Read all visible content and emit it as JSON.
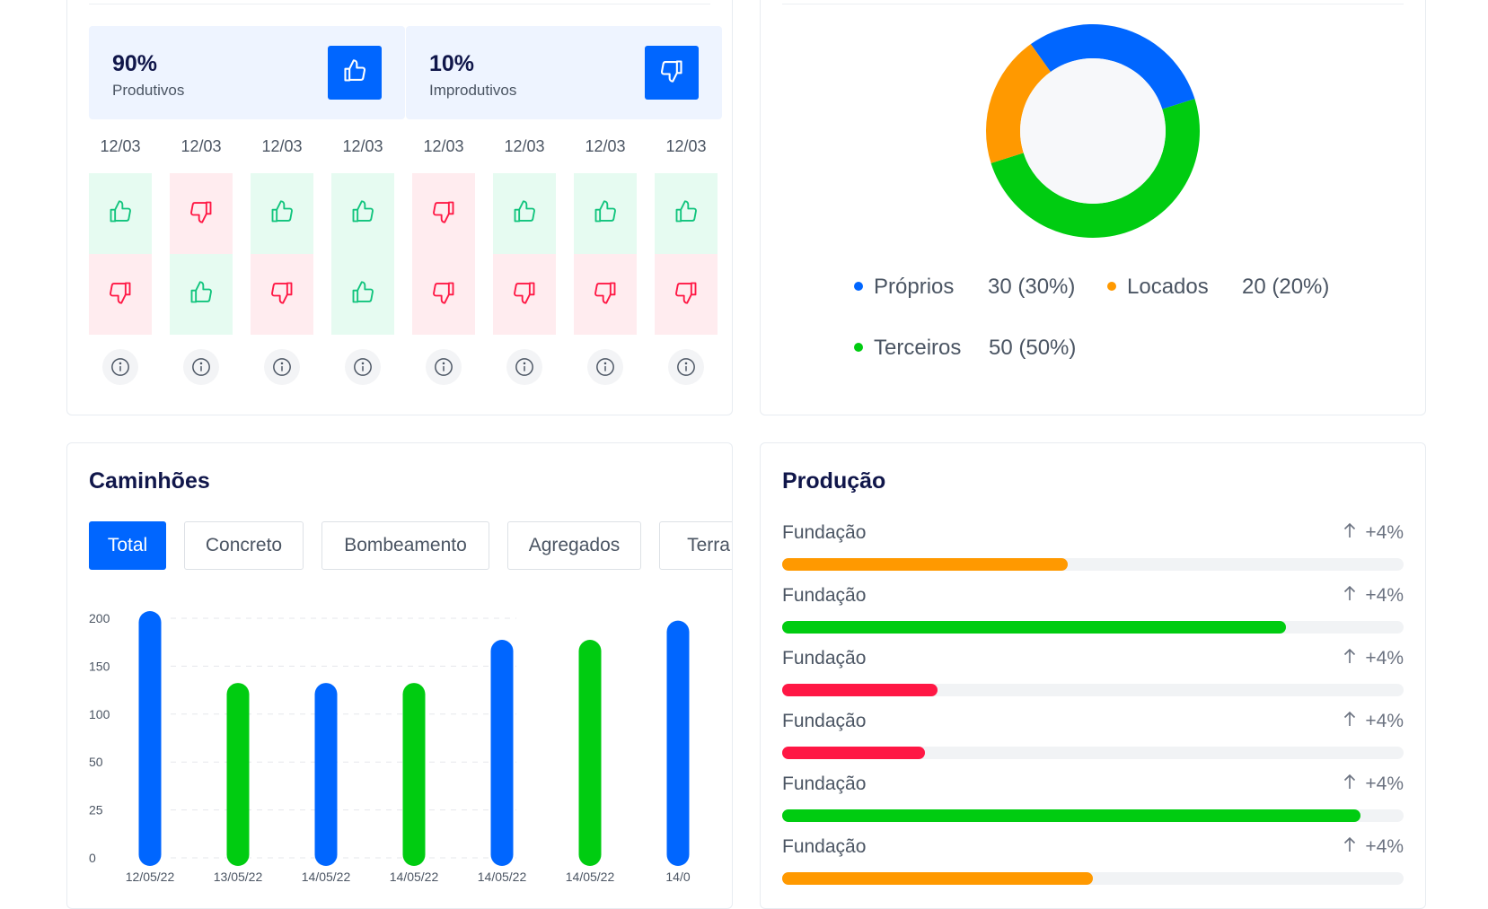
{
  "productivity": {
    "productive": {
      "percent": "90%",
      "label": "Produtivos",
      "icon": "thumbs-up-icon"
    },
    "unproductive": {
      "percent": "10%",
      "label": "Improdutivos",
      "icon": "thumbs-down-icon"
    },
    "days": [
      {
        "date": "12/03",
        "top": "up",
        "bottom": "down"
      },
      {
        "date": "12/03",
        "top": "down",
        "bottom": "up"
      },
      {
        "date": "12/03",
        "top": "up",
        "bottom": "down"
      },
      {
        "date": "12/03",
        "top": "up",
        "bottom": "up"
      },
      {
        "date": "12/03",
        "top": "down",
        "bottom": "down"
      },
      {
        "date": "12/03",
        "top": "up",
        "bottom": "down"
      },
      {
        "date": "12/03",
        "top": "up",
        "bottom": "down"
      },
      {
        "date": "12/03",
        "top": "up",
        "bottom": "down"
      }
    ],
    "colors": {
      "good": "#11c47d",
      "bad": "#ff1744",
      "accent": "#0066ff"
    }
  },
  "fleet_donut": {
    "chart_data": {
      "type": "pie",
      "style": "donut",
      "series": [
        {
          "name": "Próprios",
          "value": 30,
          "label": "30 (30%)",
          "color": "#0066ff"
        },
        {
          "name": "Locados",
          "value": 20,
          "label": "20 (20%)",
          "color": "#ff9900"
        },
        {
          "name": "Terceiros",
          "value": 50,
          "label": "50 (50%)",
          "color": "#00cc11"
        }
      ]
    }
  },
  "trucks": {
    "title": "Caminhões",
    "tabs": [
      "Total",
      "Concreto",
      "Bombeamento",
      "Agregados",
      "Terra"
    ],
    "active_tab": "Total"
  },
  "chart_data": {
    "type": "bar",
    "categories": [
      "12/05/22",
      "13/05/22",
      "14/05/22",
      "14/05/22",
      "14/05/22",
      "14/05/22",
      "14/0"
    ],
    "values": [
      200,
      125,
      125,
      125,
      170,
      170,
      190
    ],
    "colors": [
      "#0066ff",
      "#00cc11",
      "#0066ff",
      "#00cc11",
      "#0066ff",
      "#00cc11",
      "#0066ff"
    ],
    "y_ticks": [
      200,
      150,
      100,
      50,
      25,
      0
    ],
    "ylim": [
      0,
      200
    ],
    "title": "",
    "xlabel": "",
    "ylabel": "",
    "grid": true
  },
  "production": {
    "title": "Produção",
    "items": [
      {
        "name": "Fundação",
        "change": "+4%",
        "fraction": 0.46,
        "color": "#ff9900"
      },
      {
        "name": "Fundação",
        "change": "+4%",
        "fraction": 0.81,
        "color": "#00cc11"
      },
      {
        "name": "Fundação",
        "change": "+4%",
        "fraction": 0.25,
        "color": "#ff1744"
      },
      {
        "name": "Fundação",
        "change": "+4%",
        "fraction": 0.23,
        "color": "#ff1744"
      },
      {
        "name": "Fundação",
        "change": "+4%",
        "fraction": 0.93,
        "color": "#00cc11"
      },
      {
        "name": "Fundação",
        "change": "+4%",
        "fraction": 0.5,
        "color": "#ff9900"
      }
    ]
  }
}
